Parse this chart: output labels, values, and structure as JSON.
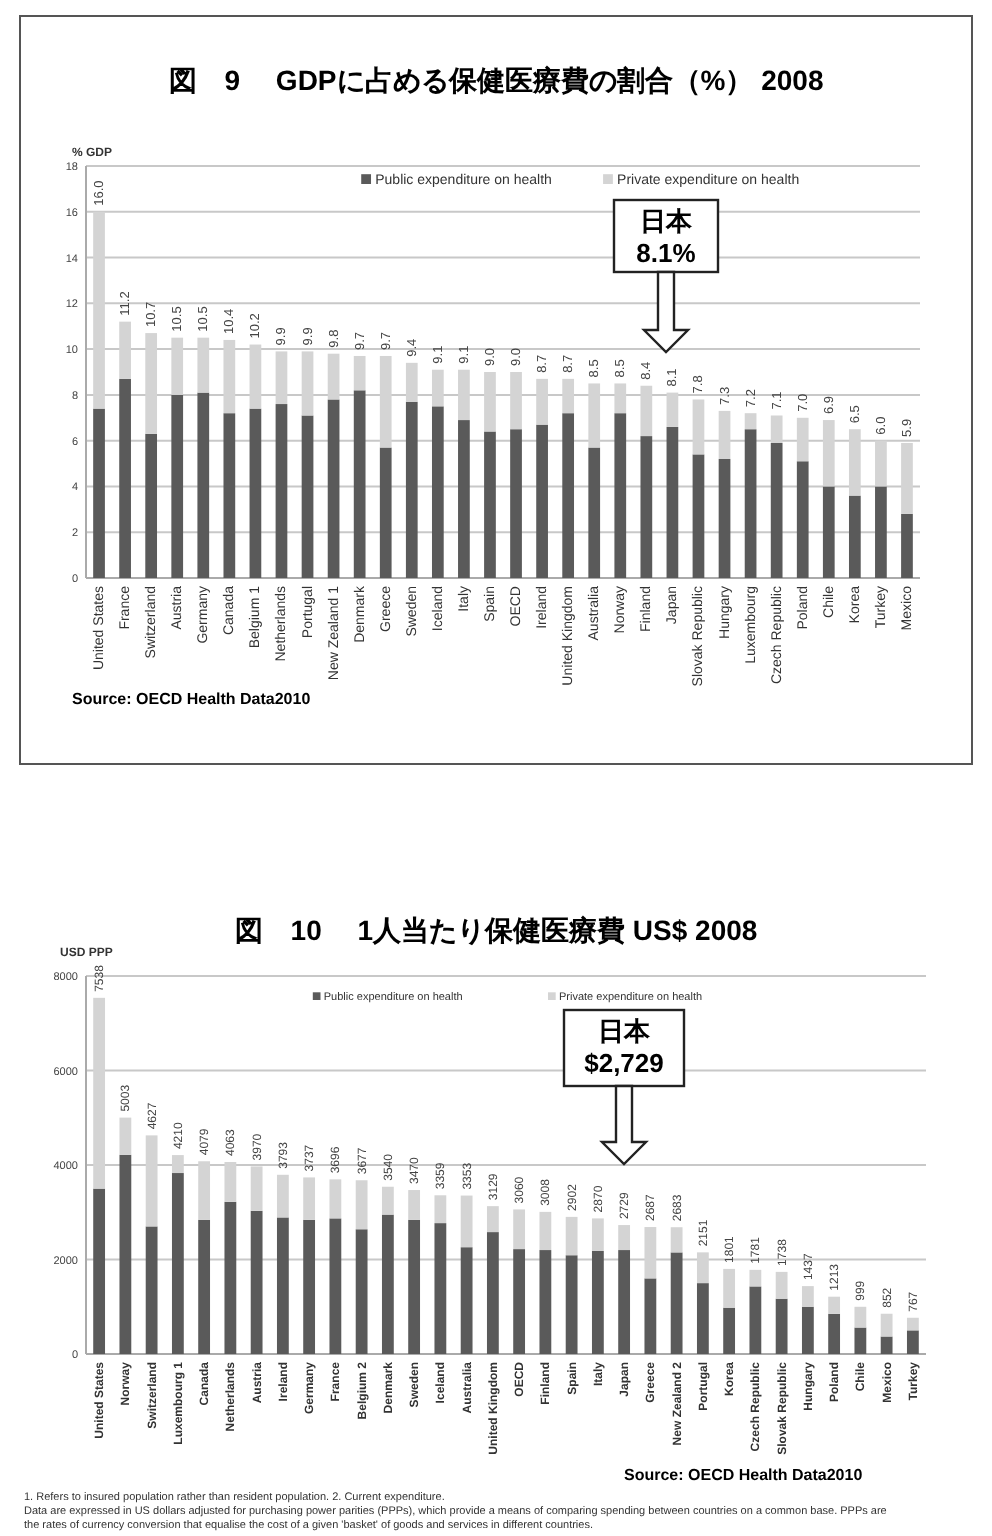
{
  "chart_data": [
    {
      "type": "bar",
      "stacked": true,
      "title": "図　9　 GDPに占める保健医療費の割合（%）  2008",
      "ylabel": "% GDP",
      "categories": [
        "United States",
        "France",
        "Switzerland",
        "Austria",
        "Germany",
        "Canada",
        "Belgium 1",
        "Netherlands",
        "Portugal",
        "New Zealand 1",
        "Denmark",
        "Greece",
        "Sweden",
        "Iceland",
        "Italy",
        "Spain",
        "OECD",
        "Ireland",
        "United Kingdom",
        "Australia",
        "Norway",
        "Finland",
        "Japan",
        "Slovak Republic",
        "Hungary",
        "Luxembourg",
        "Czech Republic",
        "Poland",
        "Chile",
        "Korea",
        "Turkey",
        "Mexico"
      ],
      "series": [
        {
          "name": "Public expenditure  on health",
          "color": "#5a5a5a",
          "values": [
            7.4,
            8.7,
            6.3,
            8.0,
            8.1,
            7.2,
            7.4,
            7.6,
            7.1,
            7.8,
            8.2,
            5.7,
            7.7,
            7.5,
            6.9,
            6.4,
            6.5,
            6.7,
            7.2,
            5.7,
            7.2,
            6.2,
            6.6,
            5.4,
            5.2,
            6.5,
            5.9,
            5.1,
            4.0,
            3.6,
            4.0,
            2.8
          ]
        },
        {
          "name": "Private expenditure  on health",
          "color": "#d4d4d4",
          "values": [
            8.6,
            2.5,
            4.4,
            2.5,
            2.4,
            3.2,
            2.8,
            2.3,
            2.8,
            2.0,
            1.5,
            4.0,
            1.7,
            1.6,
            2.2,
            2.6,
            2.5,
            2.0,
            1.5,
            2.8,
            1.3,
            2.2,
            1.5,
            2.4,
            2.1,
            0.7,
            1.2,
            1.9,
            2.9,
            2.9,
            2.0,
            3.1
          ]
        }
      ],
      "totals": [
        "16.0",
        "11.2",
        "10.7",
        "10.5",
        "10.5",
        "10.4",
        "10.2",
        "9.9",
        "9.9",
        "9.8",
        "9.7",
        "9.7",
        "9.4",
        "9.1",
        "9.1",
        "9.0",
        "9.0",
        "8.7",
        "8.7",
        "8.5",
        "8.5",
        "8.4",
        "8.1",
        "7.8",
        "7.3",
        "7.2",
        "7.1",
        "7.0",
        "6.9",
        "6.5",
        "6.0",
        "5.9"
      ],
      "ylim": [
        0,
        18
      ],
      "yticks": [
        0,
        2,
        4,
        6,
        8,
        10,
        12,
        14,
        16,
        18
      ],
      "grid": "y",
      "legend": "top",
      "annotations": [
        "日本\n8.1%",
        "Source:  OECD  Health Data2010"
      ]
    },
    {
      "type": "bar",
      "stacked": true,
      "title": "図　10　 1人当たり保健医療費  US$  2008",
      "ylabel": "USD PPP",
      "categories": [
        "United States",
        "Norway",
        "Switzerland",
        "Luxembourg 1",
        "Canada",
        "Netherlands",
        "Austria",
        "Ireland",
        "Germany",
        "France",
        "Belgium 2",
        "Denmark",
        "Sweden",
        "Iceland",
        "Australia",
        "United Kingdom",
        "OECD",
        "Finland",
        "Spain",
        "Italy",
        "Japan",
        "Greece",
        "New Zealand 2",
        "Portugal",
        "Korea",
        "Czech Republic",
        "Slovak Republic",
        "Hungary",
        "Poland",
        "Chile",
        "Mexico",
        "Turkey"
      ],
      "series": [
        {
          "name": "Public expenditure on health",
          "color": "#5a5a5a",
          "values": [
            3500,
            4215,
            2700,
            3830,
            2840,
            3220,
            3030,
            2890,
            2840,
            2870,
            2640,
            2950,
            2840,
            2770,
            2260,
            2580,
            2220,
            2200,
            2090,
            2180,
            2200,
            1600,
            2150,
            1500,
            980,
            1430,
            1170,
            1000,
            850,
            560,
            370,
            500
          ]
        },
        {
          "name": "Private expenditure on health",
          "color": "#d4d4d4",
          "values": [
            4038,
            788,
            1927,
            380,
            1239,
            843,
            940,
            903,
            897,
            826,
            1037,
            590,
            630,
            589,
            1093,
            549,
            840,
            808,
            812,
            690,
            529,
            1087,
            533,
            651,
            821,
            351,
            568,
            437,
            363,
            439,
            482,
            267
          ]
        }
      ],
      "totals": [
        "7538",
        "5003",
        "4627",
        "4210",
        "4079",
        "4063",
        "3970",
        "3793",
        "3737",
        "3696",
        "3677",
        "3540",
        "3470",
        "3359",
        "3353",
        "3129",
        "3060",
        "3008",
        "2902",
        "2870",
        "2729",
        "2687",
        "2683",
        "2151",
        "1801",
        "1781",
        "1738",
        "1437",
        "1213",
        "999",
        "852",
        "767"
      ],
      "ylim": [
        0,
        8000
      ],
      "yticks": [
        0,
        2000,
        4000,
        6000,
        8000
      ],
      "grid": "y",
      "legend": "top",
      "annotations": [
        "日本\n$2,729",
        "Source:  OECD  Health Data2010",
        "1. Refers to insured population rather than resident population.  2. Current expenditure.",
        "Data are expressed in US dollars adjusted for purchasing power parities (PPPs), which provide a means of comparing spending between countries on a common base. PPPs are the rates of currency conversion that equalise the cost of a given 'basket' of goods and services in different countries."
      ]
    }
  ]
}
